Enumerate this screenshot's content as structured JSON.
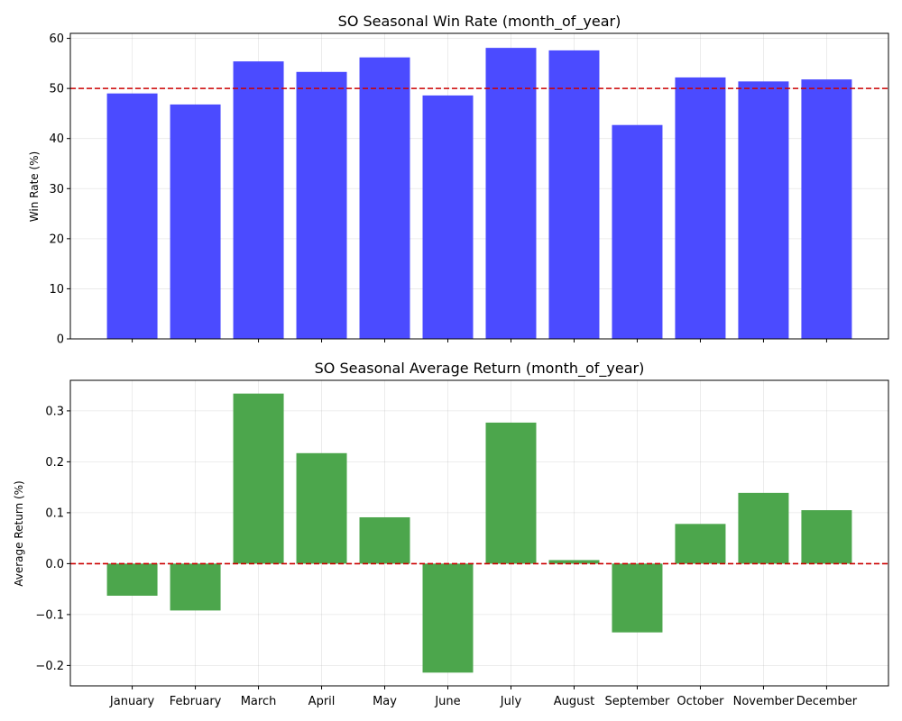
{
  "chart_data": [
    {
      "type": "bar",
      "title": "SO Seasonal Win Rate (month_of_year)",
      "xlabel": "",
      "ylabel": "Win Rate (%)",
      "categories": [
        "January",
        "February",
        "March",
        "April",
        "May",
        "June",
        "July",
        "August",
        "September",
        "October",
        "November",
        "December"
      ],
      "values": [
        49.0,
        46.8,
        55.4,
        53.3,
        56.2,
        48.6,
        58.1,
        57.6,
        42.7,
        52.2,
        51.4,
        51.8
      ],
      "ylim": [
        0,
        61
      ],
      "yticks": [
        "0",
        "10",
        "20",
        "30",
        "40",
        "50",
        "60"
      ],
      "reference_line": 50,
      "bar_color": "#4b4bff",
      "reference_color": "#cc0000",
      "grid": true,
      "show_x_tick_labels": false
    },
    {
      "type": "bar",
      "title": "SO Seasonal Average Return (month_of_year)",
      "xlabel": "",
      "ylabel": "Average Return (%)",
      "categories": [
        "January",
        "February",
        "March",
        "April",
        "May",
        "June",
        "July",
        "August",
        "September",
        "October",
        "November",
        "December"
      ],
      "values": [
        -0.063,
        -0.092,
        0.334,
        0.217,
        0.091,
        -0.214,
        0.277,
        0.007,
        -0.135,
        0.078,
        0.139,
        0.105
      ],
      "ylim": [
        -0.24,
        0.36
      ],
      "yticks": [
        "−0.2",
        "−0.1",
        "0.0",
        "0.1",
        "0.2",
        "0.3"
      ],
      "reference_line": 0,
      "bar_color": "#4ca64c",
      "reference_color": "#cc0000",
      "grid": true,
      "show_x_tick_labels": true
    }
  ]
}
